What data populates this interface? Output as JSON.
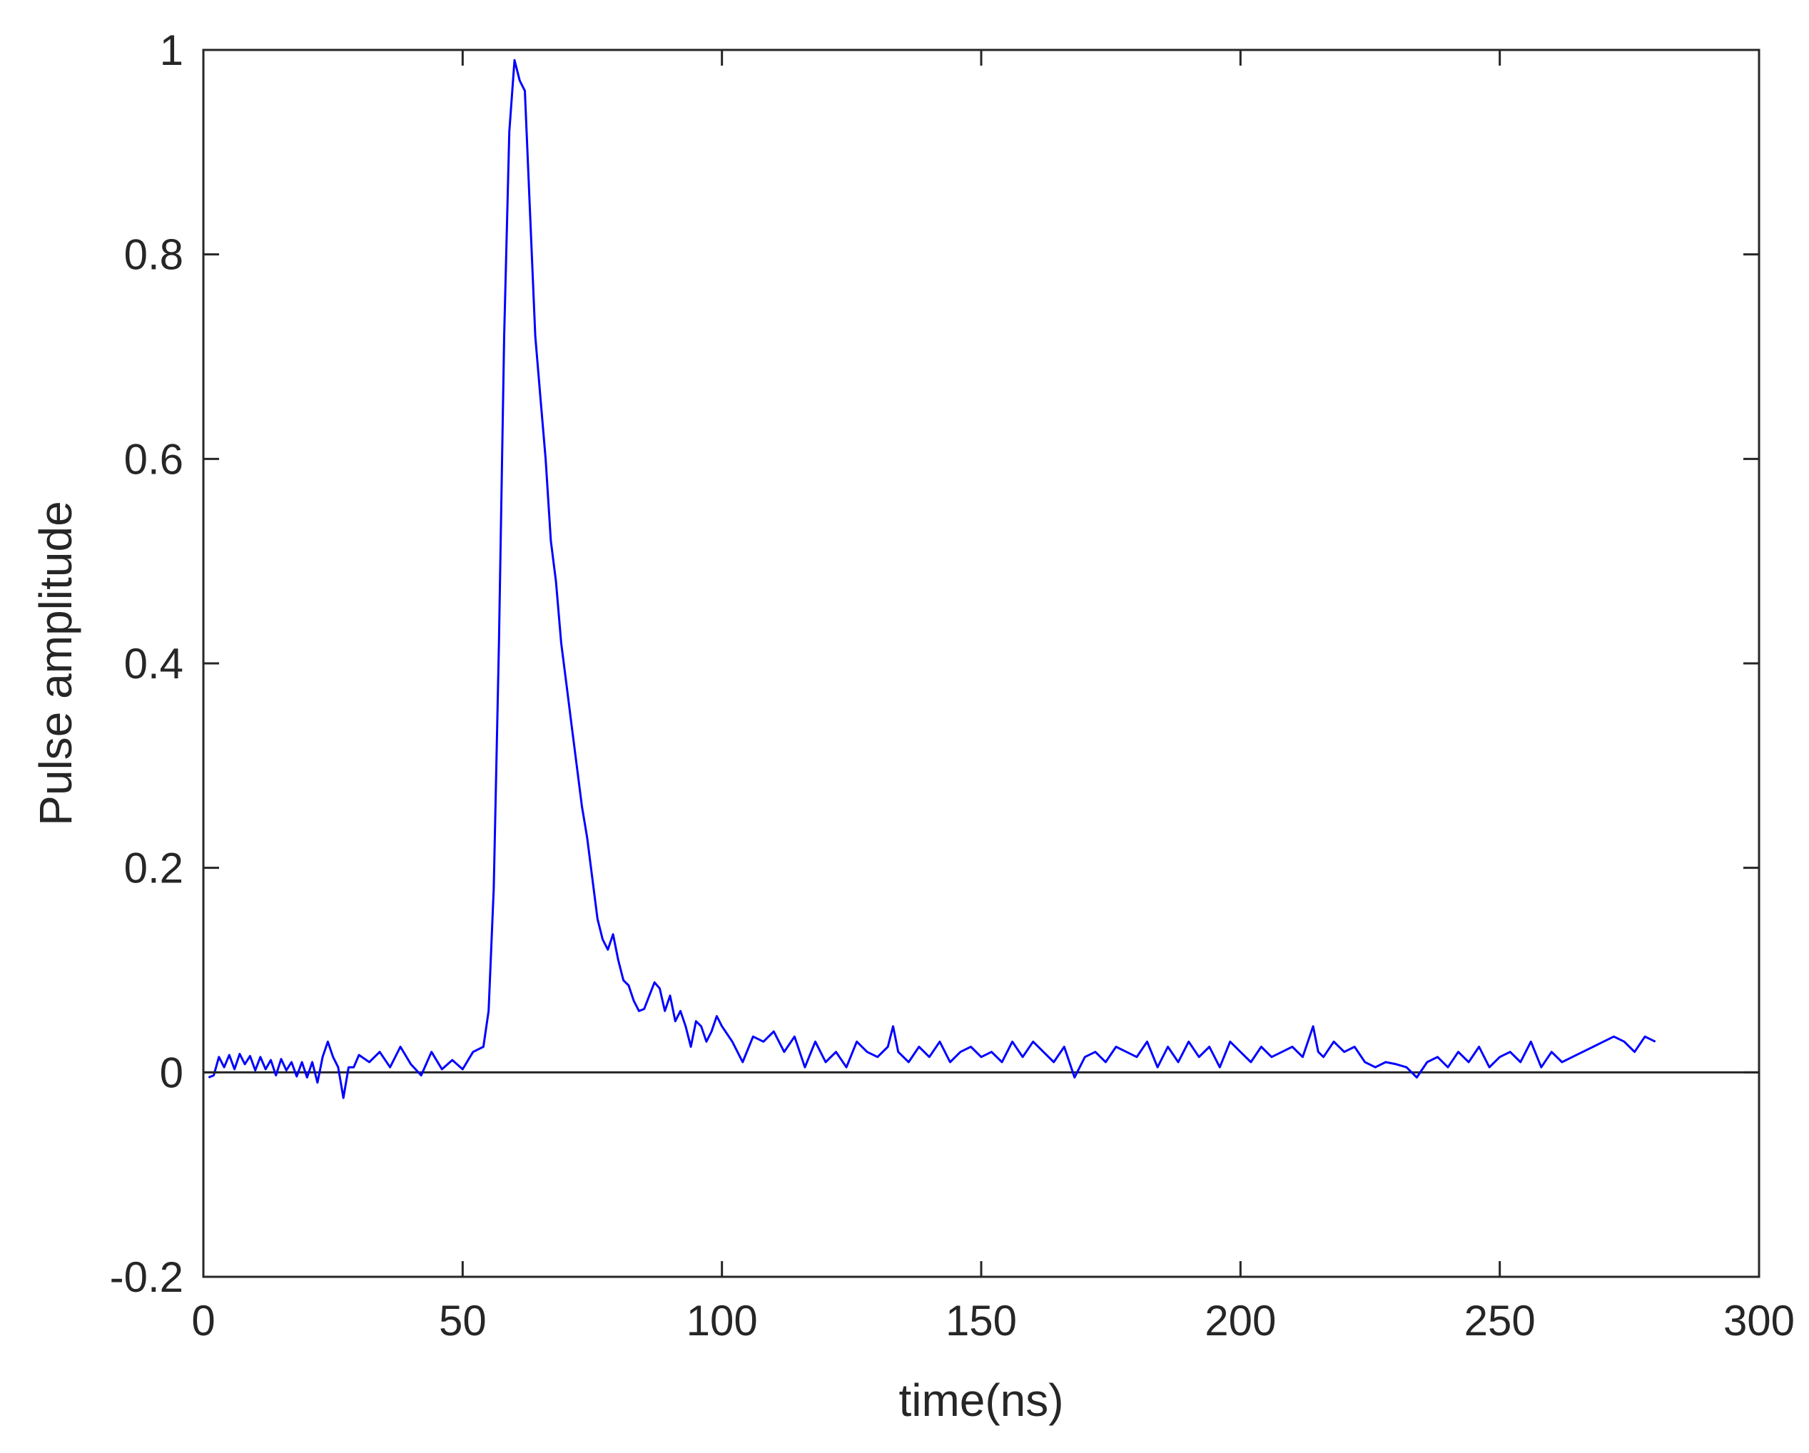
{
  "chart_data": {
    "type": "line",
    "title": "",
    "xlabel": "time(ns)",
    "ylabel": "Pulse amplitude",
    "xlim": [
      0,
      300
    ],
    "ylim": [
      -0.2,
      1
    ],
    "xticks": [
      0,
      50,
      100,
      150,
      200,
      250,
      300
    ],
    "xtick_labels": [
      "0",
      "50",
      "100",
      "150",
      "200",
      "250",
      "300"
    ],
    "yticks": [
      -0.2,
      0,
      0.2,
      0.4,
      0.6,
      0.8,
      1
    ],
    "ytick_labels": [
      "-0.2",
      "0",
      "0.2",
      "0.4",
      "0.6",
      "0.8",
      "1"
    ],
    "grid": false,
    "reference_line": {
      "y": 0,
      "color": "#262626"
    },
    "series": [
      {
        "color": "#0000ff",
        "x": [
          1,
          2,
          3,
          4,
          5,
          6,
          7,
          8,
          9,
          10,
          11,
          12,
          13,
          14,
          15,
          16,
          17,
          18,
          19,
          20,
          21,
          22,
          23,
          24,
          25,
          26,
          27,
          28,
          29,
          30,
          32,
          34,
          36,
          38,
          40,
          42,
          44,
          46,
          48,
          50,
          52,
          54,
          55,
          56,
          57,
          58,
          59,
          60,
          61,
          62,
          63,
          64,
          65,
          66,
          67,
          68,
          69,
          70,
          71,
          72,
          73,
          74,
          75,
          76,
          77,
          78,
          79,
          80,
          81,
          82,
          83,
          84,
          85,
          86,
          87,
          88,
          89,
          90,
          91,
          92,
          93,
          94,
          95,
          96,
          97,
          98,
          99,
          100,
          102,
          104,
          106,
          108,
          110,
          112,
          114,
          116,
          118,
          120,
          122,
          124,
          126,
          128,
          130,
          132,
          133,
          134,
          136,
          138,
          140,
          142,
          144,
          146,
          148,
          150,
          152,
          154,
          156,
          158,
          160,
          162,
          164,
          166,
          168,
          170,
          172,
          174,
          176,
          178,
          180,
          182,
          184,
          186,
          188,
          190,
          192,
          194,
          196,
          198,
          200,
          202,
          204,
          206,
          208,
          210,
          212,
          214,
          215,
          216,
          218,
          220,
          222,
          224,
          226,
          228,
          230,
          232,
          234,
          236,
          238,
          240,
          242,
          244,
          246,
          248,
          250,
          252,
          254,
          256,
          258,
          260,
          262,
          264,
          266,
          268,
          270,
          272,
          274,
          276,
          278,
          280
        ],
        "y": [
          -0.005,
          -0.003,
          0.015,
          0.005,
          0.017,
          0.003,
          0.018,
          0.008,
          0.016,
          0.002,
          0.015,
          0.003,
          0.012,
          -0.003,
          0.013,
          0.002,
          0.01,
          -0.004,
          0.01,
          -0.005,
          0.01,
          -0.01,
          0.015,
          0.03,
          0.015,
          0.005,
          -0.025,
          0.005,
          0.005,
          0.017,
          0.01,
          0.02,
          0.005,
          0.025,
          0.008,
          -0.003,
          0.02,
          0.003,
          0.012,
          0.003,
          0.02,
          0.025,
          0.06,
          0.18,
          0.42,
          0.72,
          0.92,
          0.99,
          0.97,
          0.96,
          0.84,
          0.72,
          0.66,
          0.6,
          0.52,
          0.48,
          0.42,
          0.38,
          0.34,
          0.3,
          0.26,
          0.23,
          0.19,
          0.15,
          0.13,
          0.12,
          0.135,
          0.11,
          0.09,
          0.085,
          0.07,
          0.06,
          0.062,
          0.075,
          0.088,
          0.082,
          0.06,
          0.075,
          0.05,
          0.06,
          0.045,
          0.025,
          0.05,
          0.045,
          0.03,
          0.04,
          0.055,
          0.045,
          0.03,
          0.01,
          0.035,
          0.03,
          0.04,
          0.02,
          0.035,
          0.005,
          0.03,
          0.01,
          0.02,
          0.005,
          0.03,
          0.02,
          0.015,
          0.025,
          0.045,
          0.02,
          0.01,
          0.025,
          0.015,
          0.03,
          0.01,
          0.02,
          0.025,
          0.015,
          0.02,
          0.01,
          0.03,
          0.015,
          0.03,
          0.02,
          0.01,
          0.025,
          -0.005,
          0.015,
          0.02,
          0.01,
          0.025,
          0.02,
          0.015,
          0.03,
          0.005,
          0.025,
          0.01,
          0.03,
          0.015,
          0.025,
          0.005,
          0.03,
          0.02,
          0.01,
          0.025,
          0.015,
          0.02,
          0.025,
          0.015,
          0.045,
          0.02,
          0.015,
          0.03,
          0.02,
          0.025,
          0.01,
          0.005,
          0.01,
          0.008,
          0.005,
          -0.005,
          0.01,
          0.015,
          0.005,
          0.02,
          0.01,
          0.025,
          0.005,
          0.015,
          0.02,
          0.01,
          0.03,
          0.005,
          0.02,
          0.01,
          0.015,
          0.02,
          0.025,
          0.03,
          0.035,
          0.03,
          0.02,
          0.035,
          0.03
        ]
      }
    ]
  }
}
